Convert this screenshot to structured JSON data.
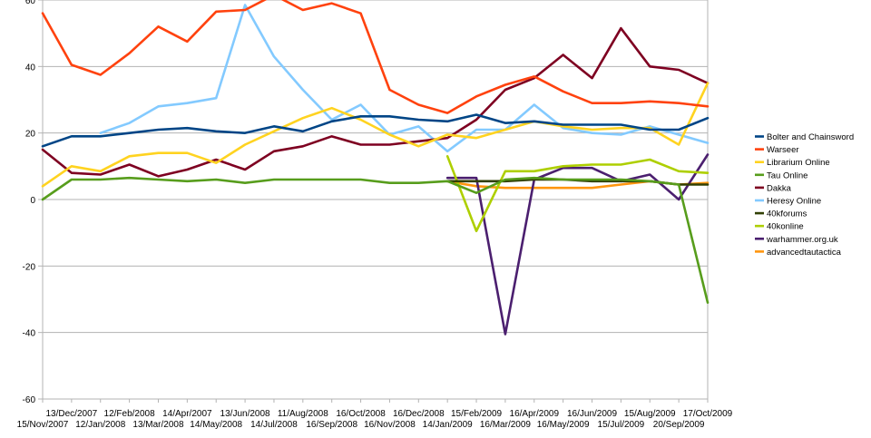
{
  "chart_data": {
    "type": "line",
    "title": "",
    "xlabel": "",
    "ylabel": "",
    "ylim": [
      -60,
      60
    ],
    "y_ticks": [
      60,
      40,
      20,
      0,
      -20,
      -40,
      -60
    ],
    "grid": "horizontal",
    "legend_position": "right",
    "categories": [
      "15/Nov/2007",
      "13/Dec/2007",
      "12/Jan/2008",
      "12/Feb/2008",
      "13/Mar/2008",
      "14/Apr/2007",
      "14/May/2008",
      "13/Jun/2008",
      "14/Jul/2008",
      "11/Aug/2008",
      "16/Sep/2008",
      "16/Oct/2008",
      "16/Nov/2008",
      "16/Dec/2008",
      "14/Jan/2009",
      "15/Feb/2009",
      "16/Mar/2009",
      "16/Apr/2009",
      "16/May/2009",
      "16/Jun/2009",
      "15/Jul/2009",
      "15/Aug/2009",
      "20/Sep/2009",
      "17/Oct/2009"
    ],
    "series": [
      {
        "name": "Bolter and Chainsword",
        "color": "#004586",
        "values": [
          16,
          19,
          19,
          20,
          21,
          21.5,
          20.5,
          20,
          22,
          20.5,
          23.5,
          25,
          25,
          24,
          23.5,
          25.5,
          23,
          23.5,
          22.5,
          22.5,
          22.5,
          21,
          21,
          24.5
        ]
      },
      {
        "name": "Warseer",
        "color": "#ff420e",
        "values": [
          56,
          40.5,
          37.5,
          44,
          52,
          47.5,
          56.5,
          57,
          61.5,
          57,
          59,
          56,
          33,
          28.5,
          26,
          31,
          34.5,
          37,
          32.5,
          29,
          29,
          29.5,
          29,
          28
        ]
      },
      {
        "name": "Librarium Online",
        "color": "#ffd320",
        "values": [
          4,
          10,
          8.5,
          13,
          14,
          14,
          11,
          16.5,
          20.5,
          24.5,
          27.5,
          24,
          19.5,
          16,
          19.5,
          18.5,
          21,
          23.5,
          22,
          21,
          21.5,
          21.5,
          16.5,
          35
        ]
      },
      {
        "name": "Tau Online",
        "color": "#579d1c",
        "values": [
          0,
          6,
          6,
          6.5,
          6,
          5.5,
          6,
          5,
          6,
          6,
          6,
          6,
          5,
          5,
          5.5,
          2,
          6,
          6.5,
          6,
          6,
          6,
          5.5,
          4.5,
          -31
        ]
      },
      {
        "name": "Dakka",
        "color": "#7e0021",
        "values": [
          15,
          8,
          7.5,
          10.5,
          7,
          9,
          12,
          9,
          14.5,
          16,
          19,
          16.5,
          16.5,
          17.5,
          18.5,
          24,
          33,
          36.5,
          43.5,
          36.5,
          51.5,
          40,
          39,
          35
        ]
      },
      {
        "name": "Heresy Online",
        "color": "#83caff",
        "values": [
          null,
          null,
          20,
          23,
          28,
          29,
          30.5,
          58.5,
          43,
          33,
          24,
          28.5,
          19.5,
          22,
          14.5,
          21,
          21,
          28.5,
          21.5,
          20,
          19.5,
          22,
          19.5,
          17
        ]
      },
      {
        "name": "40kforums",
        "color": "#314004",
        "values": [
          null,
          null,
          null,
          null,
          null,
          null,
          null,
          null,
          null,
          null,
          null,
          null,
          null,
          null,
          5.5,
          5.5,
          5.5,
          6,
          6,
          5.5,
          5.5,
          5.5,
          4.5,
          4.5
        ]
      },
      {
        "name": "40konline",
        "color": "#aecf00",
        "values": [
          null,
          null,
          null,
          null,
          null,
          null,
          null,
          null,
          null,
          null,
          null,
          null,
          null,
          null,
          13,
          -9.5,
          8.5,
          8.5,
          10,
          10.5,
          10.5,
          12,
          8.5,
          8
        ]
      },
      {
        "name": "warhammer.org.uk",
        "color": "#4b1f6f",
        "values": [
          null,
          null,
          null,
          null,
          null,
          null,
          null,
          null,
          null,
          null,
          null,
          null,
          null,
          null,
          6.5,
          6.5,
          -40.5,
          6,
          9.5,
          9.5,
          5.5,
          7.5,
          0,
          13.5
        ]
      },
      {
        "name": "advancedtautactica",
        "color": "#ff950e",
        "values": [
          null,
          null,
          null,
          null,
          null,
          null,
          null,
          null,
          null,
          null,
          null,
          null,
          null,
          null,
          5.5,
          4,
          3.5,
          3.5,
          3.5,
          3.5,
          4.5,
          5.5,
          4.5,
          5
        ]
      }
    ]
  }
}
